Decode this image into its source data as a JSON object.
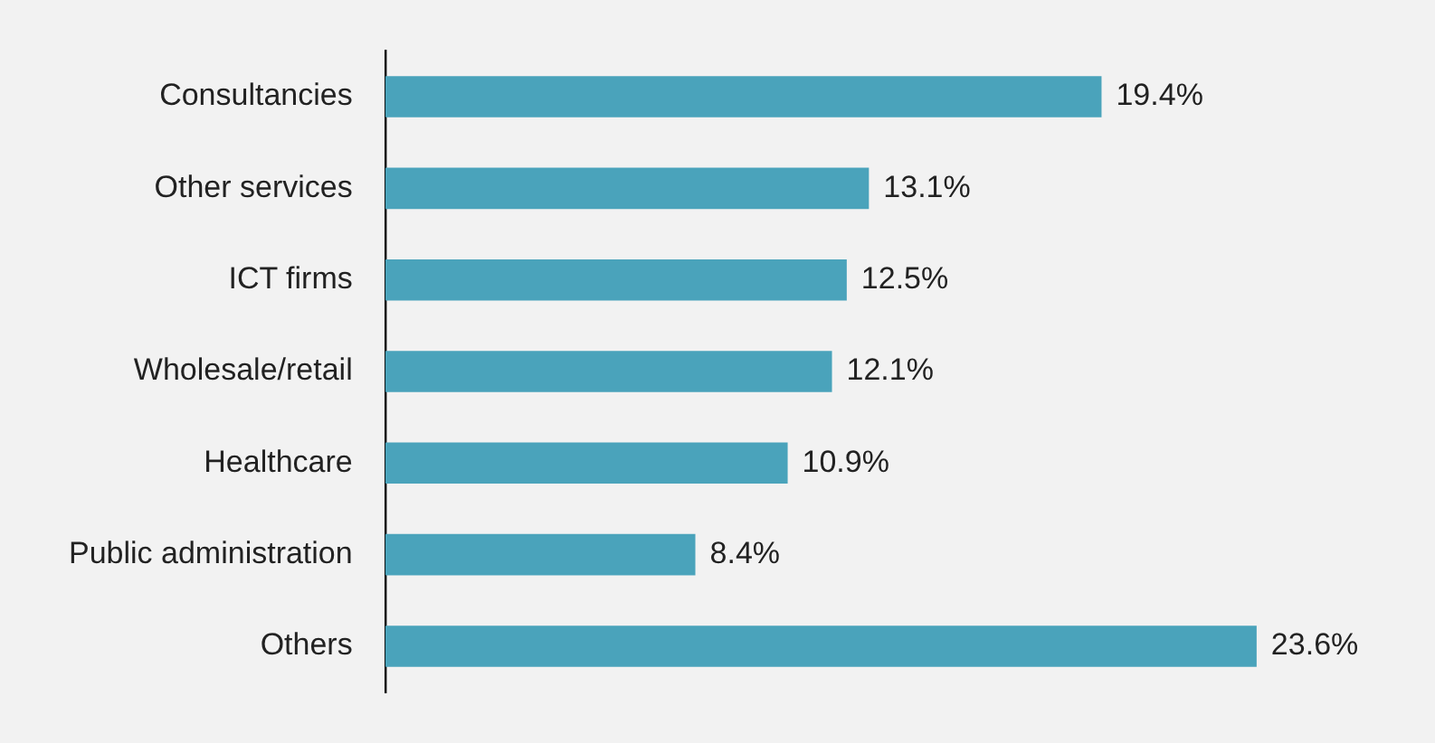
{
  "chart_data": {
    "type": "bar",
    "orientation": "horizontal",
    "categories": [
      "Consultancies",
      "Other services",
      "ICT firms",
      "Wholesale/retail",
      "Healthcare",
      "Public administration",
      "Others"
    ],
    "values": [
      19.4,
      13.1,
      12.5,
      12.1,
      10.9,
      8.4,
      23.6
    ],
    "value_labels": [
      "19.4%",
      "13.1%",
      "12.5%",
      "12.1%",
      "10.9%",
      "8.4%",
      "23.6%"
    ],
    "color": "#4aa3bb",
    "legend": false
  }
}
